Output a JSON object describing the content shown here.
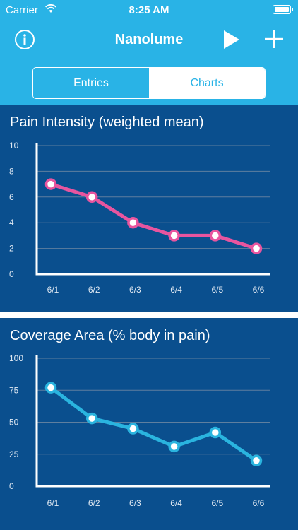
{
  "status_bar": {
    "carrier": "Carrier",
    "time": "8:25 AM"
  },
  "nav": {
    "title": "Nanolume",
    "left_icon": "info-icon",
    "right_icons": [
      "play-icon",
      "plus-icon"
    ]
  },
  "segments": {
    "entries_label": "Entries",
    "charts_label": "Charts",
    "selected": "Entries"
  },
  "colors": {
    "accent": "#29b3e6",
    "panel_bg": "#0a4f8e",
    "pink": "#e8559f",
    "cyan": "#2ab4df"
  },
  "chart_data": [
    {
      "type": "line",
      "title": "Pain Intensity (weighted mean)",
      "categories": [
        "6/1",
        "6/2",
        "6/3",
        "6/4",
        "6/5",
        "6/6"
      ],
      "values": [
        7,
        6,
        4,
        3,
        3,
        2
      ],
      "yticks": [
        "0",
        "2",
        "4",
        "6",
        "8",
        "10"
      ],
      "ylim": [
        0,
        10
      ],
      "grid": true,
      "color": "#e8559f"
    },
    {
      "type": "line",
      "title": "Coverage Area (% body in pain)",
      "categories": [
        "6/1",
        "6/2",
        "6/3",
        "6/4",
        "6/5",
        "6/6"
      ],
      "values": [
        77,
        53,
        45,
        31,
        42,
        20
      ],
      "yticks": [
        "0",
        "25",
        "50",
        "75",
        "100"
      ],
      "ylim": [
        0,
        100
      ],
      "grid": true,
      "color": "#2ab4df"
    }
  ]
}
